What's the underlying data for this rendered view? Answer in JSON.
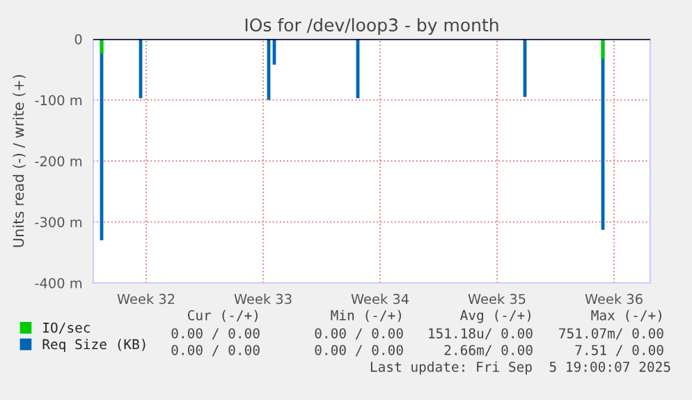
{
  "chart_data": {
    "type": "bar",
    "title": "IOs for /dev/loop3 - by month",
    "ylabel": "Units read (-) / write (+)",
    "categories": [
      null,
      null,
      null,
      null,
      null,
      null,
      null,
      null,
      null,
      "Week 32",
      null,
      null,
      null,
      null,
      null,
      null,
      null,
      null,
      null,
      null,
      null,
      null,
      null,
      null,
      null,
      null,
      null,
      null,
      null,
      null,
      "Week 33",
      null,
      null,
      null,
      null,
      null,
      null,
      null,
      null,
      null,
      null,
      null,
      null,
      null,
      null,
      null,
      null,
      null,
      null,
      null,
      null,
      "Week 34",
      null,
      null,
      null,
      null,
      null,
      null,
      null,
      null,
      null,
      null,
      null,
      null,
      null,
      null,
      null,
      null,
      null,
      null,
      null,
      null,
      "Week 35",
      null,
      null,
      null,
      null,
      null,
      null,
      null,
      null,
      null,
      null,
      null,
      null,
      null,
      null,
      null,
      null,
      null,
      null,
      null,
      null,
      "Week 36",
      null,
      null,
      null,
      null,
      null,
      null
    ],
    "series": [
      {
        "name": "IO/sec",
        "color": "#00cc00",
        "values": [
          null,
          -24,
          null,
          null,
          null,
          null,
          null,
          null,
          null,
          null,
          null,
          null,
          null,
          null,
          null,
          null,
          null,
          null,
          null,
          null,
          null,
          null,
          null,
          null,
          null,
          null,
          null,
          null,
          null,
          null,
          null,
          null,
          null,
          null,
          null,
          null,
          null,
          null,
          null,
          null,
          null,
          null,
          null,
          null,
          null,
          null,
          null,
          null,
          null,
          null,
          null,
          null,
          null,
          null,
          null,
          null,
          null,
          null,
          null,
          null,
          null,
          null,
          null,
          null,
          null,
          null,
          null,
          null,
          null,
          null,
          null,
          null,
          null,
          null,
          null,
          null,
          null,
          null,
          null,
          null,
          null,
          null,
          null,
          null,
          null,
          null,
          null,
          null,
          null,
          null,
          null,
          -33,
          null,
          null,
          null,
          null,
          null,
          null,
          null,
          null
        ]
      },
      {
        "name": "Req Size (KB)",
        "color": "#0066b3",
        "values": [
          null,
          -330,
          null,
          null,
          null,
          null,
          null,
          null,
          -97,
          null,
          null,
          null,
          null,
          null,
          null,
          null,
          null,
          null,
          null,
          null,
          null,
          null,
          null,
          null,
          null,
          null,
          null,
          null,
          null,
          null,
          null,
          -100,
          -42,
          null,
          null,
          null,
          null,
          null,
          null,
          null,
          null,
          null,
          null,
          null,
          null,
          null,
          null,
          -97,
          null,
          null,
          null,
          null,
          null,
          null,
          null,
          null,
          null,
          null,
          null,
          null,
          null,
          null,
          null,
          null,
          null,
          null,
          null,
          null,
          null,
          null,
          null,
          null,
          null,
          null,
          null,
          null,
          null,
          -95,
          null,
          null,
          null,
          null,
          null,
          null,
          null,
          null,
          null,
          null,
          null,
          null,
          null,
          -313,
          null,
          null,
          null,
          null,
          null,
          null,
          null,
          null
        ]
      }
    ],
    "ylim": [
      -400,
      0
    ],
    "yticks": [
      {
        "value": -400,
        "label": "-400 m"
      },
      {
        "value": -300,
        "label": "-300 m"
      },
      {
        "value": -200,
        "label": "-200 m"
      },
      {
        "value": -100,
        "label": "-100 m"
      },
      0
    ],
    "ref_lines": [
      {
        "axis": "y",
        "value": 0,
        "color": "#000000"
      }
    ],
    "grid": true,
    "legend": "bottom left",
    "annotations": [
      "Cur (-/+)",
      "Min (-/+)",
      "Avg (-/+)",
      "Max (-/+)",
      "0.00 / 0.00",
      "0.00 / 0.00",
      "151.18u/ 0.00",
      "751.07m/ 0.00",
      "0.00 / 0.00",
      "0.00 / 0.00",
      "2.66m/ 0.00",
      "7.51 / 0.00",
      "Last update: Fri Sep  5 19:00:07 2025"
    ]
  }
}
